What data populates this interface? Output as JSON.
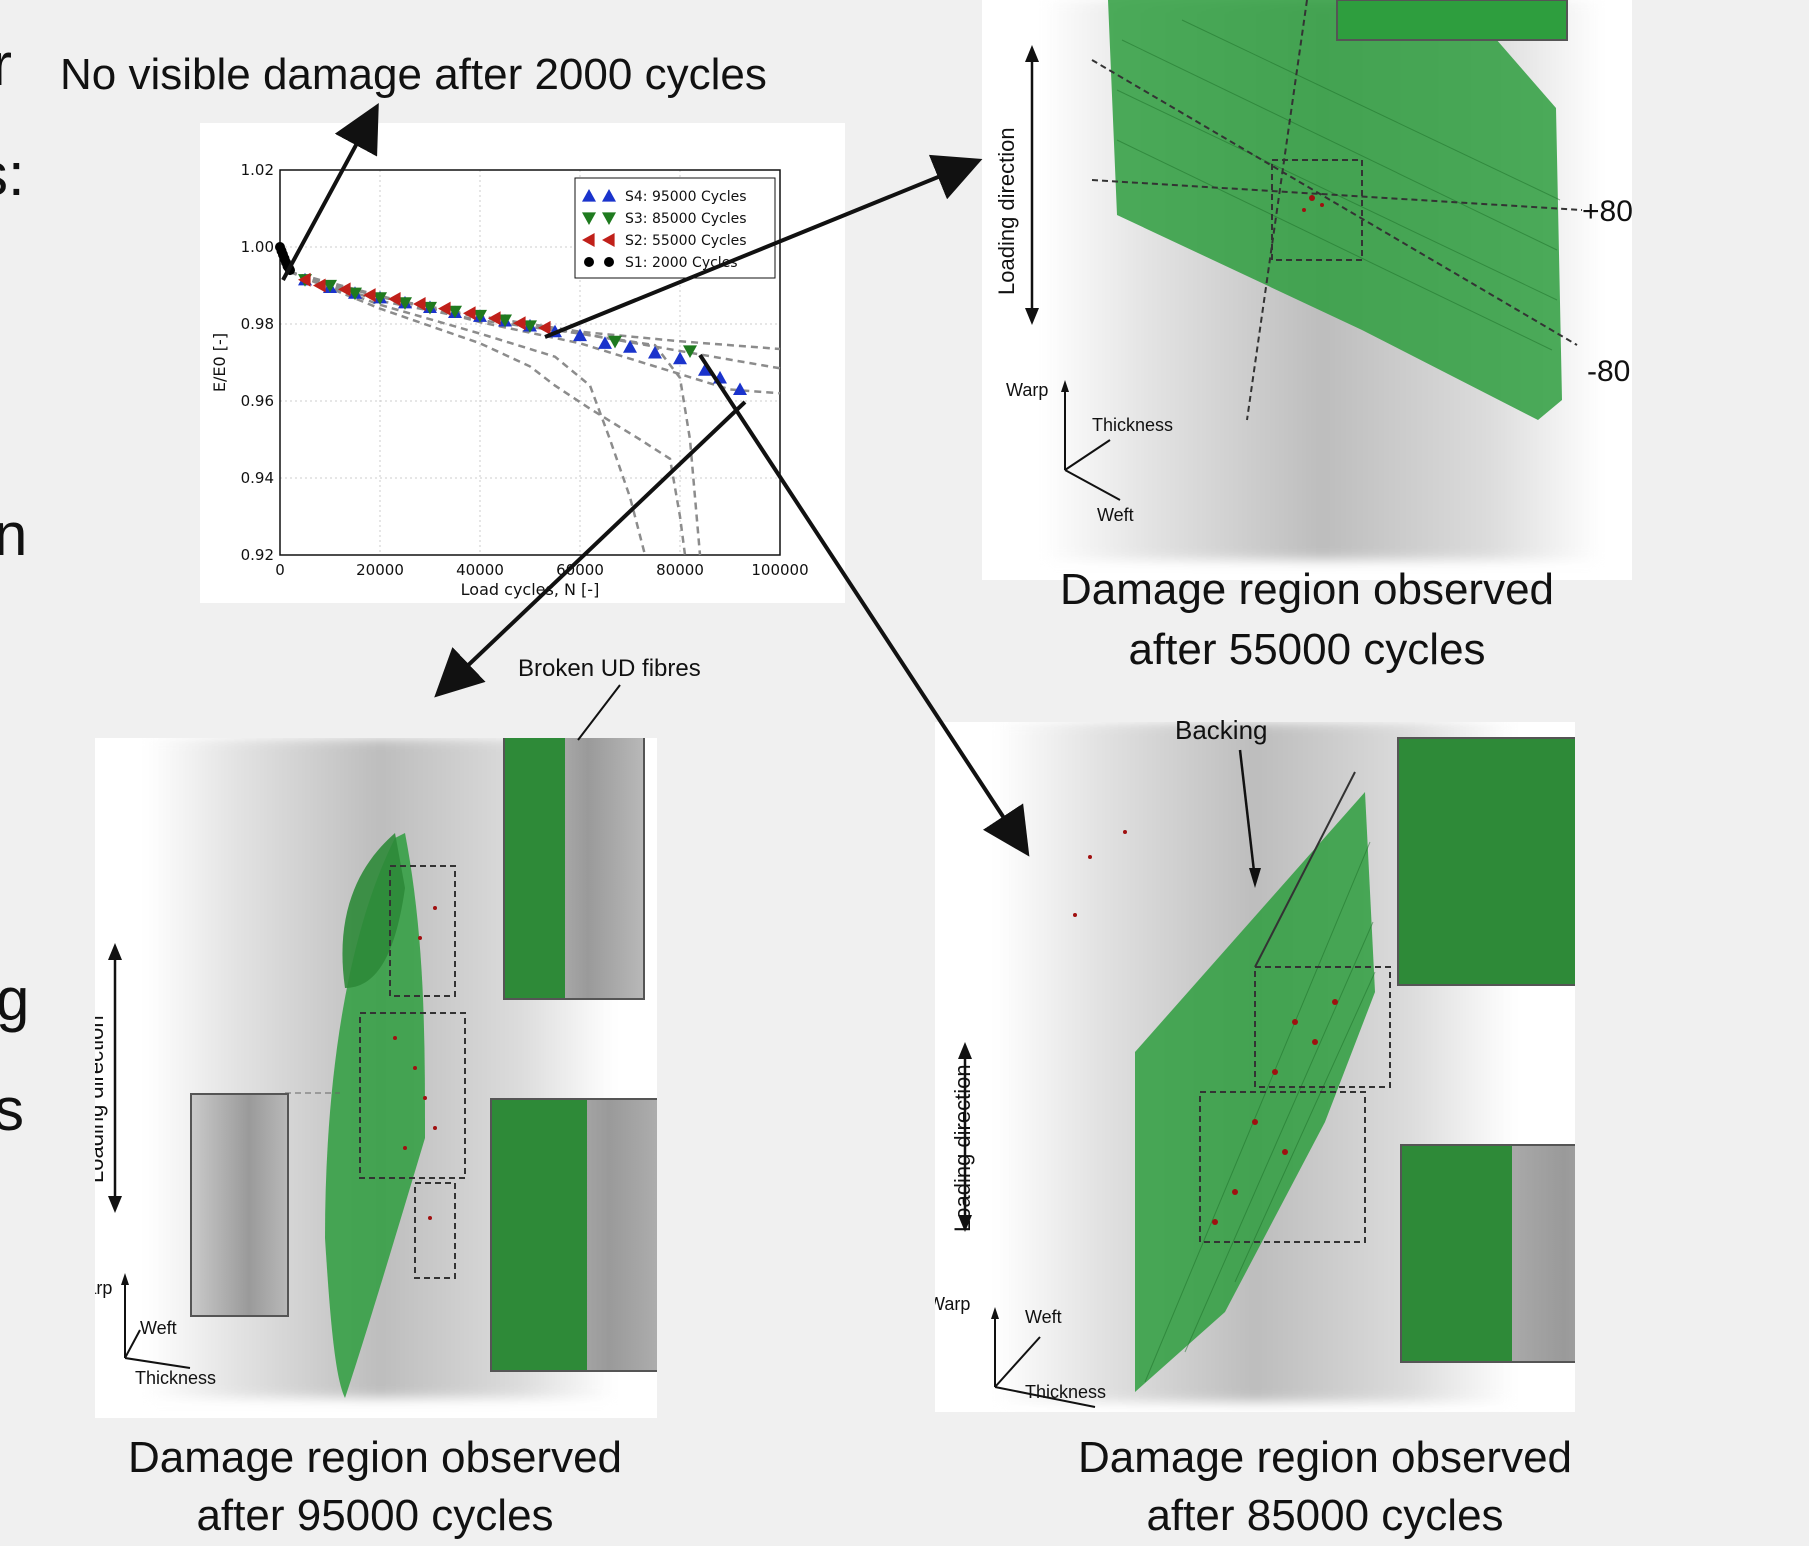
{
  "top_annotation": "No visible damage after 2000 cycles",
  "side_letters": [
    "r",
    "s:",
    "n",
    "g",
    "s"
  ],
  "panel_55000": {
    "caption_line1": "Damage region observed",
    "caption_line2": "after 55000 cycles",
    "loading_direction": "Loading direction",
    "angle_pos": "+80°",
    "angle_neg": "-80°",
    "axis_warp": "Warp",
    "axis_thickness": "Thickness",
    "axis_weft": "Weft"
  },
  "panel_95000": {
    "caption_line1": "Damage region observed",
    "caption_line2": "after 95000 cycles",
    "annotation": "Broken UD fibres",
    "loading_direction": "Loading direction",
    "axis_warp": "Warp",
    "axis_weft": "Weft",
    "axis_thickness": "Thickness"
  },
  "panel_85000": {
    "caption_line1": "Damage region observed",
    "caption_line2": "after 85000 cycles",
    "annotation": "Backing",
    "loading_direction": "Loading direction",
    "axis_warp": "Warp",
    "axis_weft": "Weft",
    "axis_thickness": "Thickness"
  },
  "colors": {
    "fibre_green": "#2e9e3e",
    "damage_red": "#a01010",
    "blue_marker": "#1a33cc",
    "green_marker": "#1f7a1f",
    "red_marker": "#c0201a",
    "black_marker": "#000000",
    "dashed_curves": "#8c8c8c"
  },
  "chart_data": {
    "type": "scatter",
    "xlabel": "Load cycles, N [-]",
    "ylabel": "E/E0 [-]",
    "xlim": [
      0,
      100000
    ],
    "ylim": [
      0.92,
      1.02
    ],
    "x_ticks": [
      0,
      20000,
      40000,
      60000,
      80000,
      100000
    ],
    "y_ticks": [
      0.92,
      0.94,
      0.96,
      0.98,
      1.0,
      1.02
    ],
    "x_tick_labels": [
      "0",
      "20000",
      "40000",
      "60000",
      "80000",
      "100000"
    ],
    "y_tick_labels": [
      "0.92",
      "0.94",
      "0.96",
      "0.98",
      "1.00",
      "1.02"
    ],
    "grid": true,
    "legend_position": "top-right",
    "series": [
      {
        "name": "S4: 95000 Cycles",
        "marker": "triangle-up",
        "color": "#1a33cc",
        "x": [
          5000,
          10000,
          15000,
          20000,
          25000,
          30000,
          35000,
          40000,
          45000,
          50000,
          55000,
          60000,
          65000,
          70000,
          75000,
          80000,
          85000,
          88000,
          92000
        ],
        "y": [
          0.9915,
          0.9895,
          0.988,
          0.9868,
          0.9855,
          0.9843,
          0.983,
          0.982,
          0.9808,
          0.9795,
          0.978,
          0.977,
          0.975,
          0.974,
          0.9725,
          0.971,
          0.968,
          0.966,
          0.963
        ]
      },
      {
        "name": "S3: 85000 Cycles",
        "marker": "triangle-down",
        "color": "#1f7a1f",
        "x": [
          5000,
          10000,
          15000,
          20000,
          25000,
          30000,
          35000,
          40000,
          45000,
          50000,
          67000,
          82000
        ],
        "y": [
          0.9915,
          0.99,
          0.988,
          0.9868,
          0.9855,
          0.9843,
          0.9833,
          0.9822,
          0.981,
          0.9795,
          0.9755,
          0.973
        ]
      },
      {
        "name": "S2: 55000 Cycles",
        "marker": "triangle-left",
        "color": "#c0201a",
        "x": [
          5000,
          8000,
          13000,
          18000,
          23000,
          28000,
          33000,
          38000,
          43000,
          48000,
          53000
        ],
        "y": [
          0.9915,
          0.99,
          0.989,
          0.9875,
          0.9865,
          0.9852,
          0.984,
          0.9828,
          0.9815,
          0.9802,
          0.979
        ]
      },
      {
        "name": "S1: 2000 Cycles",
        "marker": "circle",
        "color": "#000000",
        "x": [
          0,
          300,
          600,
          900,
          1200,
          1500,
          1800,
          2000
        ],
        "y": [
          1.0,
          0.999,
          0.998,
          0.997,
          0.996,
          0.995,
          0.9945,
          0.994
        ]
      }
    ]
  }
}
